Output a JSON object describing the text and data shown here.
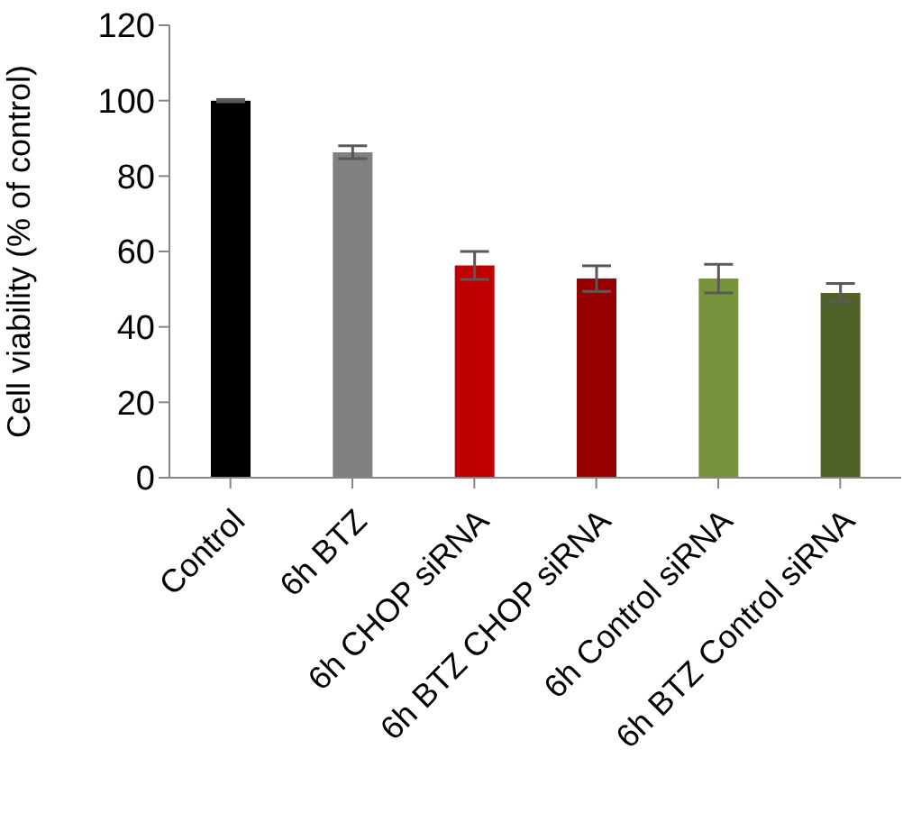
{
  "chart_data": {
    "type": "bar",
    "ylabel": "Cell viability (% of control)",
    "categories": [
      "Control",
      "6h BTZ",
      "6h CHOP siRNA",
      "6h BTZ CHOP siRNA",
      "6h Control siRNA",
      "6h BTZ Control siRNA"
    ],
    "values": [
      100,
      86.3,
      56.3,
      52.8,
      52.8,
      49.0
    ],
    "errors": [
      0.3,
      1.7,
      3.7,
      3.4,
      3.8,
      2.5
    ],
    "colors": [
      "#000000",
      "#808080",
      "#c00000",
      "#960000",
      "#77933c",
      "#4f6228"
    ],
    "ylim": [
      0,
      120
    ],
    "yticks": [
      0,
      20,
      40,
      60,
      80,
      100,
      120
    ],
    "grid": false,
    "legend": false
  }
}
